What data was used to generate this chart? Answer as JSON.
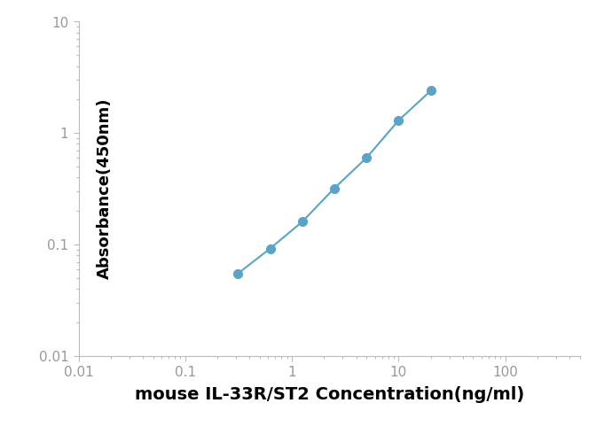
{
  "x_values": [
    0.313,
    0.625,
    1.25,
    2.5,
    5.0,
    10.0,
    20.0
  ],
  "y_values": [
    0.055,
    0.092,
    0.16,
    0.32,
    0.6,
    1.3,
    2.4
  ],
  "xlabel": "mouse IL-33R/ST2 Concentration(ng/ml)",
  "ylabel": "Absorbance(450nm)",
  "xlim": [
    0.01,
    500
  ],
  "ylim": [
    0.01,
    10
  ],
  "line_color": "#5BA3C9",
  "marker_color": "#5BA3C9",
  "marker_size": 7,
  "line_width": 1.5,
  "xlabel_fontsize": 14,
  "ylabel_fontsize": 13,
  "tick_fontsize": 11,
  "tick_label_color": "#999999",
  "background_color": "#ffffff",
  "spine_color": "#bbbbbb"
}
